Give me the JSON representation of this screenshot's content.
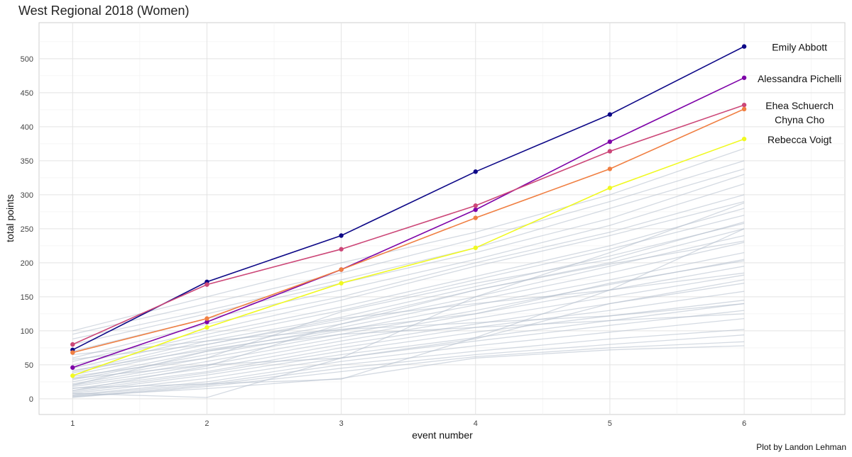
{
  "chart_data": {
    "type": "line",
    "title": "West Regional 2018 (Women)",
    "xlabel": "event number",
    "ylabel": "total points",
    "caption": "Plot by Landon Lehman",
    "x": [
      1,
      2,
      3,
      4,
      5,
      6
    ],
    "xlim": [
      0.75,
      6.75
    ],
    "ylim": [
      -23,
      553
    ],
    "x_ticks": [
      1,
      2,
      3,
      4,
      5,
      6
    ],
    "y_ticks": [
      0,
      50,
      100,
      150,
      200,
      250,
      300,
      350,
      400,
      450,
      500
    ],
    "grid": true,
    "legend": "none",
    "highlighted_series": [
      {
        "name": "Emily Abbott",
        "color": "#0d0887",
        "values": [
          72,
          172,
          240,
          334,
          418,
          518
        ]
      },
      {
        "name": "Alessandra Pichelli",
        "color": "#7e03a8",
        "values": [
          46,
          113,
          190,
          278,
          378,
          472
        ]
      },
      {
        "name": "Ehea Schuerch",
        "color": "#cc4778",
        "values": [
          80,
          168,
          220,
          284,
          364,
          432
        ]
      },
      {
        "name": "Chyna Cho",
        "color": "#f07f42",
        "values": [
          68,
          118,
          190,
          266,
          338,
          426
        ]
      },
      {
        "name": "Rebecca Voigt",
        "color": "#f0f921",
        "values": [
          34,
          105,
          170,
          222,
          310,
          382
        ]
      }
    ],
    "background_series_color": "#b0bccb",
    "background_series": [
      {
        "values": [
          100,
          150,
          200,
          245,
          300,
          368
        ]
      },
      {
        "values": [
          95,
          140,
          185,
          235,
          290,
          350
        ]
      },
      {
        "values": [
          88,
          130,
          175,
          222,
          280,
          338
        ]
      },
      {
        "values": [
          80,
          125,
          170,
          215,
          265,
          330
        ]
      },
      {
        "values": [
          70,
          118,
          160,
          205,
          255,
          316
        ]
      },
      {
        "values": [
          60,
          110,
          150,
          200,
          245,
          300
        ]
      },
      {
        "values": [
          55,
          100,
          145,
          195,
          240,
          290
        ]
      },
      {
        "values": [
          50,
          95,
          135,
          180,
          225,
          280
        ]
      },
      {
        "values": [
          45,
          90,
          130,
          175,
          220,
          270
        ]
      },
      {
        "values": [
          40,
          85,
          120,
          165,
          210,
          258
        ]
      },
      {
        "values": [
          38,
          80,
          115,
          160,
          200,
          250
        ]
      },
      {
        "values": [
          35,
          75,
          110,
          150,
          195,
          240
        ]
      },
      {
        "values": [
          30,
          70,
          105,
          145,
          185,
          230
        ]
      },
      {
        "values": [
          28,
          65,
          100,
          138,
          175,
          215
        ]
      },
      {
        "values": [
          25,
          60,
          95,
          130,
          168,
          205
        ]
      },
      {
        "values": [
          22,
          55,
          90,
          125,
          160,
          195
        ]
      },
      {
        "values": [
          20,
          50,
          85,
          118,
          150,
          182
        ]
      },
      {
        "values": [
          18,
          45,
          80,
          110,
          140,
          170
        ]
      },
      {
        "values": [
          15,
          40,
          75,
          105,
          130,
          158
        ]
      },
      {
        "values": [
          12,
          38,
          70,
          98,
          122,
          145
        ]
      },
      {
        "values": [
          10,
          35,
          65,
          90,
          115,
          140
        ]
      },
      {
        "values": [
          8,
          30,
          60,
          85,
          108,
          130
        ]
      },
      {
        "values": [
          6,
          25,
          55,
          78,
          98,
          118
        ]
      },
      {
        "values": [
          5,
          22,
          50,
          70,
          88,
          102
        ]
      },
      {
        "values": [
          3,
          20,
          45,
          65,
          80,
          94
        ]
      },
      {
        "values": [
          2,
          18,
          40,
          62,
          75,
          84
        ]
      },
      {
        "values": [
          4,
          15,
          30,
          60,
          72,
          78
        ]
      },
      {
        "values": [
          12,
          48,
          110,
          160,
          198,
          232
        ]
      },
      {
        "values": [
          20,
          70,
          95,
          105,
          115,
          125
        ]
      },
      {
        "values": [
          30,
          50,
          60,
          88,
          140,
          175
        ]
      },
      {
        "values": [
          8,
          2,
          60,
          150,
          215,
          288
        ]
      },
      {
        "values": [
          42,
          72,
          102,
          112,
          122,
          140
        ]
      },
      {
        "values": [
          65,
          85,
          102,
          125,
          170,
          203
        ]
      },
      {
        "values": [
          16,
          22,
          29,
          90,
          160,
          250
        ]
      },
      {
        "values": [
          33,
          60,
          128,
          170,
          205,
          260
        ]
      },
      {
        "values": [
          58,
          80,
          118,
          140,
          160,
          185
        ]
      }
    ]
  }
}
